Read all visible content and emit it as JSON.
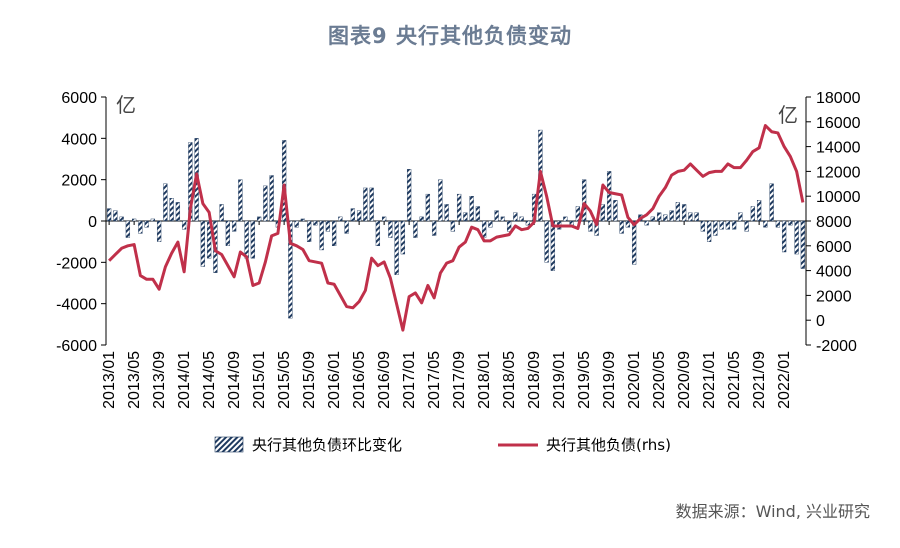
{
  "title": "图表9  央行其他负债变动",
  "source": "数据来源：Wind, 兴业研究",
  "chart_data": {
    "type": "bar+line",
    "left_unit": "亿",
    "right_unit": "亿",
    "y_left": {
      "min": -6000,
      "max": 6000,
      "ticks": [
        6000,
        4000,
        2000,
        0,
        -2000,
        -4000,
        -6000
      ]
    },
    "y_right": {
      "min": -2000,
      "max": 18000,
      "ticks": [
        18000,
        16000,
        14000,
        12000,
        10000,
        8000,
        6000,
        4000,
        2000,
        0,
        -2000
      ]
    },
    "x_tick_labels": [
      "2013/01",
      "2013/05",
      "2013/09",
      "2014/01",
      "2014/05",
      "2014/09",
      "2015/01",
      "2015/05",
      "2015/09",
      "2016/01",
      "2016/05",
      "2016/09",
      "2017/01",
      "2017/05",
      "2017/09",
      "2018/01",
      "2018/05",
      "2018/09",
      "2019/01",
      "2019/05",
      "2019/09",
      "2020/01",
      "2020/05",
      "2020/09",
      "2021/01",
      "2021/05",
      "2021/09",
      "2022/01"
    ],
    "months": [
      "2013/01",
      "2013/02",
      "2013/03",
      "2013/04",
      "2013/05",
      "2013/06",
      "2013/07",
      "2013/08",
      "2013/09",
      "2013/10",
      "2013/11",
      "2013/12",
      "2014/01",
      "2014/02",
      "2014/03",
      "2014/04",
      "2014/05",
      "2014/06",
      "2014/07",
      "2014/08",
      "2014/09",
      "2014/10",
      "2014/11",
      "2014/12",
      "2015/01",
      "2015/02",
      "2015/03",
      "2015/04",
      "2015/05",
      "2015/06",
      "2015/07",
      "2015/08",
      "2015/09",
      "2015/10",
      "2015/11",
      "2015/12",
      "2016/01",
      "2016/02",
      "2016/03",
      "2016/04",
      "2016/05",
      "2016/06",
      "2016/07",
      "2016/08",
      "2016/09",
      "2016/10",
      "2016/11",
      "2016/12",
      "2017/01",
      "2017/02",
      "2017/03",
      "2017/04",
      "2017/05",
      "2017/06",
      "2017/07",
      "2017/08",
      "2017/09",
      "2017/10",
      "2017/11",
      "2017/12",
      "2018/01",
      "2018/02",
      "2018/03",
      "2018/04",
      "2018/05",
      "2018/06",
      "2018/07",
      "2018/08",
      "2018/09",
      "2018/10",
      "2018/11",
      "2018/12",
      "2019/01",
      "2019/02",
      "2019/03",
      "2019/04",
      "2019/05",
      "2019/06",
      "2019/07",
      "2019/08",
      "2019/09",
      "2019/10",
      "2019/11",
      "2019/12",
      "2020/01",
      "2020/02",
      "2020/03",
      "2020/04",
      "2020/05",
      "2020/06",
      "2020/07",
      "2020/08",
      "2020/09",
      "2020/10",
      "2020/11",
      "2020/12",
      "2021/01",
      "2021/02",
      "2021/03",
      "2021/04",
      "2021/05",
      "2021/06",
      "2021/07",
      "2021/08",
      "2021/09",
      "2021/10",
      "2021/11",
      "2021/12",
      "2022/01",
      "2022/02",
      "2022/03",
      "2022/04"
    ],
    "series": [
      {
        "name": "央行其他负债环比变化",
        "kind": "bar",
        "axis": "left",
        "color": "#1f3a5f",
        "values": [
          600,
          500,
          200,
          -800,
          100,
          -600,
          -300,
          100,
          -1000,
          1800,
          1100,
          900,
          -400,
          3800,
          4000,
          -2200,
          -1800,
          -2500,
          800,
          -1200,
          -500,
          2000,
          -1800,
          -1800,
          200,
          1700,
          2200,
          -300,
          3900,
          -4700,
          -300,
          100,
          -1000,
          -200,
          -1400,
          -500,
          -1200,
          200,
          -600,
          600,
          500,
          1600,
          1600,
          -1200,
          200,
          -800,
          -2600,
          -1600,
          2500,
          -800,
          200,
          1300,
          -700,
          2000,
          800,
          -500,
          1300,
          400,
          1200,
          700,
          -800,
          -300,
          500,
          200,
          -500,
          400,
          200,
          -200,
          1300,
          4400,
          -2000,
          -2400,
          -400,
          200,
          -200,
          700,
          2000,
          -500,
          -700,
          800,
          2400,
          1000,
          -600,
          -300,
          -2100,
          300,
          -200,
          200,
          400,
          300,
          500,
          900,
          800,
          400,
          400,
          -500,
          -1000,
          -700,
          -400,
          -400,
          -400,
          400,
          -500,
          700,
          1000,
          -300,
          1800,
          -300,
          -1500,
          -200,
          -1600,
          -2300
        ]
      },
      {
        "name": "央行其他负债(rhs)",
        "kind": "line",
        "axis": "right",
        "color": "#c0304a",
        "values": [
          4800,
          5300,
          5800,
          6000,
          6100,
          3600,
          3300,
          3300,
          2500,
          4300,
          5400,
          6300,
          3900,
          9000,
          11800,
          9400,
          8700,
          5600,
          5300,
          4400,
          3500,
          5500,
          5100,
          2800,
          3000,
          4700,
          6800,
          7000,
          10900,
          6200,
          6000,
          5700,
          4800,
          4700,
          4600,
          3000,
          2900,
          2000,
          1100,
          1000,
          1500,
          2400,
          5000,
          4400,
          4700,
          3400,
          1300,
          -800,
          1900,
          2200,
          1400,
          2800,
          1800,
          3800,
          4600,
          4800,
          5900,
          6300,
          7500,
          7300,
          6400,
          6400,
          6700,
          6800,
          6900,
          7600,
          7300,
          7400,
          7900,
          12000,
          10000,
          7600,
          7600,
          7600,
          7600,
          7400,
          9400,
          8800,
          7700,
          10900,
          10300,
          10200,
          10100,
          8300,
          7700,
          8200,
          8500,
          9000,
          10000,
          10700,
          11700,
          12000,
          12100,
          12600,
          12100,
          11600,
          11900,
          12000,
          12000,
          12600,
          12300,
          12300,
          12900,
          13600,
          13900,
          15700,
          15200,
          15100,
          14000,
          13200,
          12000,
          9500
        ]
      }
    ]
  }
}
